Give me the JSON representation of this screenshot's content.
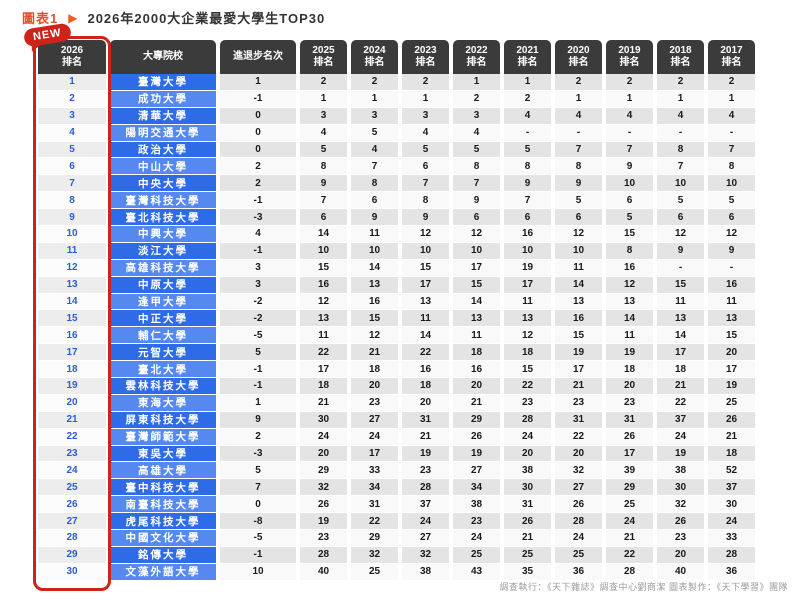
{
  "header": {
    "chart_label": "圖表1",
    "arrow_icon": "▶",
    "badge": "NEW",
    "title": "2026年2000大企業最愛大學生TOP30"
  },
  "footer": {
    "credits": "調查執行：《天下雜誌》調查中心劉商潔 圖表製作：《天下學習》團隊"
  },
  "chart_data": {
    "type": "table",
    "title": "2026年2000大企業最愛大學生TOP30",
    "columns": [
      {
        "lines": [
          "2026",
          "排名"
        ]
      },
      {
        "lines": [
          "大專院校"
        ]
      },
      {
        "lines": [
          "進退步名次"
        ]
      },
      {
        "lines": [
          "2025",
          "排名"
        ]
      },
      {
        "lines": [
          "2024",
          "排名"
        ]
      },
      {
        "lines": [
          "2023",
          "排名"
        ]
      },
      {
        "lines": [
          "2022",
          "排名"
        ]
      },
      {
        "lines": [
          "2021",
          "排名"
        ]
      },
      {
        "lines": [
          "2020",
          "排名"
        ]
      },
      {
        "lines": [
          "2019",
          "排名"
        ]
      },
      {
        "lines": [
          "2018",
          "排名"
        ]
      },
      {
        "lines": [
          "2017",
          "排名"
        ]
      }
    ],
    "rows": [
      [
        "1",
        "臺灣大學",
        "1",
        "2",
        "2",
        "2",
        "1",
        "1",
        "2",
        "2",
        "2",
        "2"
      ],
      [
        "2",
        "成功大學",
        "-1",
        "1",
        "1",
        "1",
        "2",
        "2",
        "1",
        "1",
        "1",
        "1"
      ],
      [
        "3",
        "清華大學",
        "0",
        "3",
        "3",
        "3",
        "3",
        "4",
        "4",
        "4",
        "4",
        "4"
      ],
      [
        "4",
        "陽明交通大學",
        "0",
        "4",
        "5",
        "4",
        "4",
        "-",
        "-",
        "-",
        "-",
        "-"
      ],
      [
        "5",
        "政治大學",
        "0",
        "5",
        "4",
        "5",
        "5",
        "5",
        "7",
        "7",
        "8",
        "7"
      ],
      [
        "6",
        "中山大學",
        "2",
        "8",
        "7",
        "6",
        "8",
        "8",
        "8",
        "9",
        "7",
        "8"
      ],
      [
        "7",
        "中央大學",
        "2",
        "9",
        "8",
        "7",
        "7",
        "9",
        "9",
        "10",
        "10",
        "10"
      ],
      [
        "8",
        "臺灣科技大學",
        "-1",
        "7",
        "6",
        "8",
        "9",
        "7",
        "5",
        "6",
        "5",
        "5"
      ],
      [
        "9",
        "臺北科技大學",
        "-3",
        "6",
        "9",
        "9",
        "6",
        "6",
        "6",
        "5",
        "6",
        "6"
      ],
      [
        "10",
        "中興大學",
        "4",
        "14",
        "11",
        "12",
        "12",
        "16",
        "12",
        "15",
        "12",
        "12"
      ],
      [
        "11",
        "淡江大學",
        "-1",
        "10",
        "10",
        "10",
        "10",
        "10",
        "10",
        "8",
        "9",
        "9"
      ],
      [
        "12",
        "高雄科技大學",
        "3",
        "15",
        "14",
        "15",
        "17",
        "19",
        "11",
        "16",
        "-",
        "-"
      ],
      [
        "13",
        "中原大學",
        "3",
        "16",
        "13",
        "17",
        "15",
        "17",
        "14",
        "12",
        "15",
        "16"
      ],
      [
        "14",
        "逢甲大學",
        "-2",
        "12",
        "16",
        "13",
        "14",
        "11",
        "13",
        "13",
        "11",
        "11"
      ],
      [
        "15",
        "中正大學",
        "-2",
        "13",
        "15",
        "11",
        "13",
        "13",
        "16",
        "14",
        "13",
        "13"
      ],
      [
        "16",
        "輔仁大學",
        "-5",
        "11",
        "12",
        "14",
        "11",
        "12",
        "15",
        "11",
        "14",
        "15"
      ],
      [
        "17",
        "元智大學",
        "5",
        "22",
        "21",
        "22",
        "18",
        "18",
        "19",
        "19",
        "17",
        "20"
      ],
      [
        "18",
        "臺北大學",
        "-1",
        "17",
        "18",
        "16",
        "16",
        "15",
        "17",
        "18",
        "18",
        "17"
      ],
      [
        "19",
        "雲林科技大學",
        "-1",
        "18",
        "20",
        "18",
        "20",
        "22",
        "21",
        "20",
        "21",
        "19"
      ],
      [
        "20",
        "東海大學",
        "1",
        "21",
        "23",
        "20",
        "21",
        "23",
        "23",
        "23",
        "22",
        "25"
      ],
      [
        "21",
        "屏東科技大學",
        "9",
        "30",
        "27",
        "31",
        "29",
        "28",
        "31",
        "31",
        "37",
        "26"
      ],
      [
        "22",
        "臺灣師範大學",
        "2",
        "24",
        "24",
        "21",
        "26",
        "24",
        "22",
        "26",
        "24",
        "21"
      ],
      [
        "23",
        "東吳大學",
        "-3",
        "20",
        "17",
        "19",
        "19",
        "20",
        "20",
        "17",
        "19",
        "18"
      ],
      [
        "24",
        "高雄大學",
        "5",
        "29",
        "33",
        "23",
        "27",
        "38",
        "32",
        "39",
        "38",
        "52"
      ],
      [
        "25",
        "臺中科技大學",
        "7",
        "32",
        "34",
        "28",
        "34",
        "30",
        "27",
        "29",
        "30",
        "37"
      ],
      [
        "26",
        "南臺科技大學",
        "0",
        "26",
        "31",
        "37",
        "38",
        "31",
        "26",
        "25",
        "32",
        "30"
      ],
      [
        "27",
        "虎尾科技大學",
        "-8",
        "19",
        "22",
        "24",
        "23",
        "26",
        "28",
        "24",
        "26",
        "24"
      ],
      [
        "28",
        "中國文化大學",
        "-5",
        "23",
        "29",
        "27",
        "24",
        "21",
        "24",
        "21",
        "23",
        "33"
      ],
      [
        "29",
        "銘傳大學",
        "-1",
        "28",
        "32",
        "32",
        "25",
        "25",
        "25",
        "22",
        "20",
        "28"
      ],
      [
        "30",
        "文藻外語大學",
        "10",
        "40",
        "25",
        "38",
        "43",
        "35",
        "36",
        "28",
        "40",
        "36"
      ]
    ],
    "colors": {
      "header_bg": "#3b3b3b",
      "school_blue_dark": "#2e6be6",
      "school_blue_light": "#5589ef",
      "rank_text_blue": "#2c5cd6",
      "highlight_red": "#cc241b",
      "title_accent": "#e4502e",
      "stripe_gray": "#e4e4e4"
    }
  }
}
